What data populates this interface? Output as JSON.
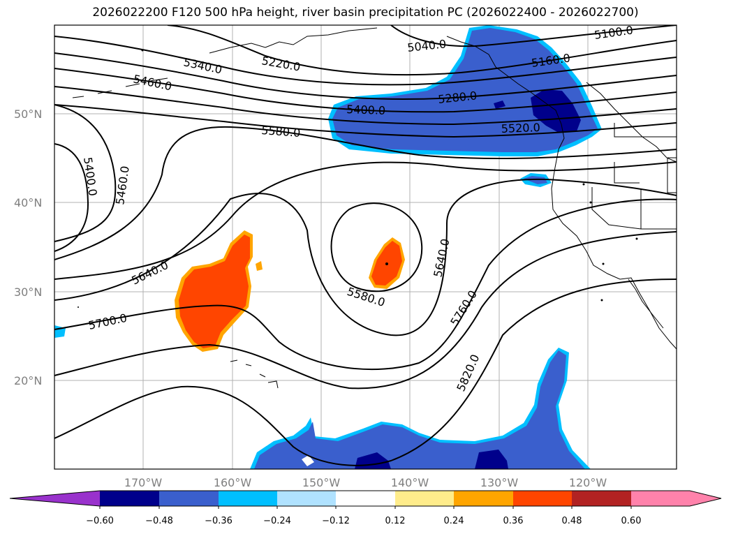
{
  "title": "2026022200 F120 500 hPa height, river basin precipitation PC (2026022400 - 2026022700)",
  "lat_labels": [
    "50°N",
    "40°N",
    "30°N",
    "20°N"
  ],
  "lon_labels": [
    "170°W",
    "160°W",
    "150°W",
    "140°W",
    "130°W",
    "120°W"
  ],
  "contour_labels": [
    "5040.0",
    "5100.0",
    "5160.0",
    "5220.0",
    "5280.0",
    "5340.0",
    "5400.0",
    "5400.0",
    "5460.0",
    "5460.0",
    "5520.0",
    "5580.0",
    "5580.0",
    "5640.0",
    "5640.0",
    "5700.0",
    "5760.0",
    "5820.0"
  ],
  "colorbar": {
    "ticks": [
      "−0.60",
      "−0.48",
      "−0.36",
      "−0.24",
      "−0.12",
      "0.12",
      "0.24",
      "0.36",
      "0.48",
      "0.60"
    ],
    "colors": [
      "#9932cc",
      "#00008b",
      "#3a5fcd",
      "#00bfff",
      "#b0e2ff",
      "#ffffff",
      "#ffec8b",
      "#ffa500",
      "#ff4500",
      "#b22222",
      "#ff82ab",
      "#ff82ab"
    ]
  }
}
